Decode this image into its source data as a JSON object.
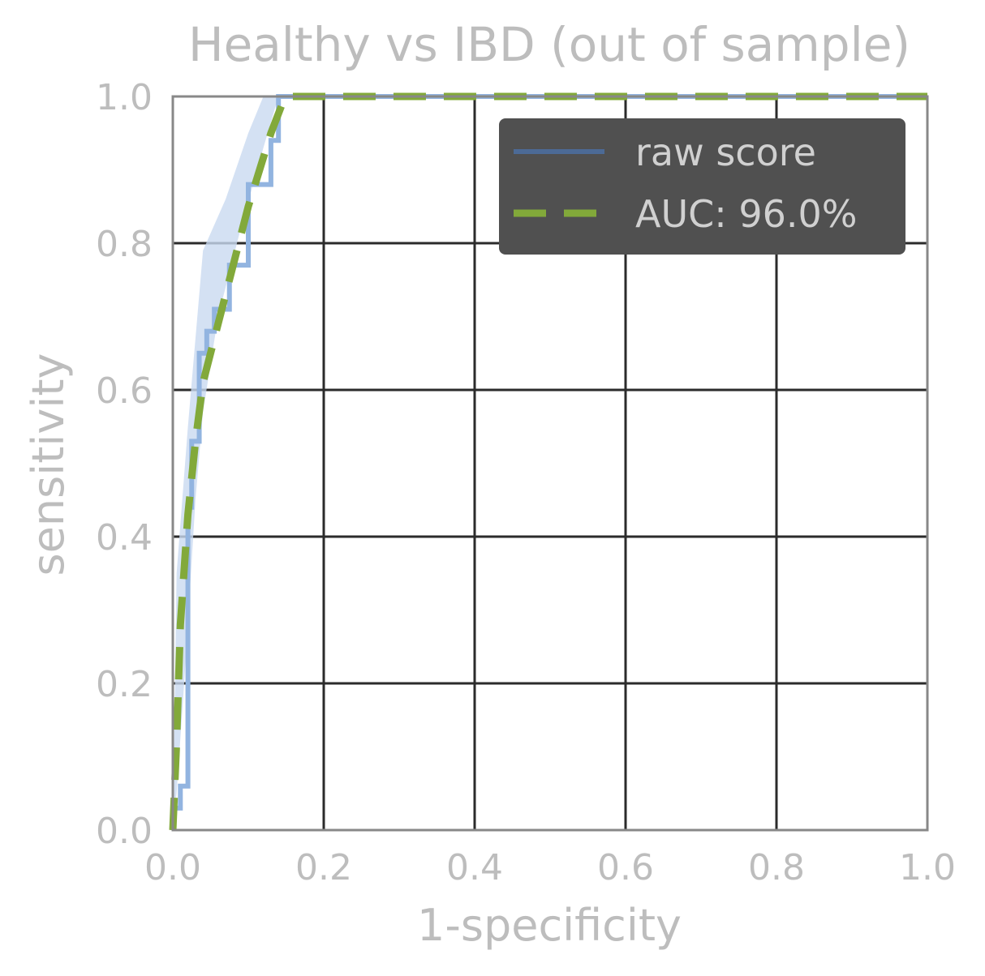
{
  "chart_data": {
    "type": "line",
    "title": "Healthy vs IBD (out of sample)",
    "xlabel": "1-specificity",
    "ylabel": "sensitivity",
    "xlim": [
      0,
      1
    ],
    "ylim": [
      0,
      1
    ],
    "x_ticks": [
      "0.0",
      "0.2",
      "0.4",
      "0.6",
      "0.8",
      "1.0"
    ],
    "y_ticks": [
      "0.0",
      "0.2",
      "0.4",
      "0.6",
      "0.8",
      "1.0"
    ],
    "grid": true,
    "legend_position": "top-right",
    "series": [
      {
        "name": "raw score",
        "style": "solid",
        "color": "#92b4e0",
        "legend_color": "#4c6a96",
        "x": [
          0,
          0,
          0.01,
          0.01,
          0.02,
          0.02,
          0.025,
          0.025,
          0.035,
          0.035,
          0.045,
          0.045,
          0.055,
          0.055,
          0.075,
          0.075,
          0.1,
          0.1,
          0.13,
          0.13,
          0.14,
          0.14,
          1.0
        ],
        "y": [
          0,
          0.03,
          0.03,
          0.06,
          0.06,
          0.44,
          0.44,
          0.53,
          0.53,
          0.65,
          0.65,
          0.68,
          0.68,
          0.71,
          0.71,
          0.77,
          0.77,
          0.88,
          0.88,
          0.94,
          0.94,
          1.0,
          1.0
        ],
        "band_upper": {
          "x": [
            0,
            0.005,
            0.02,
            0.04,
            0.07,
            0.1,
            0.12,
            0.14
          ],
          "y": [
            0,
            0.35,
            0.55,
            0.79,
            0.86,
            0.95,
            1.0,
            1.0
          ]
        },
        "band_lower": {
          "x": [
            0.14,
            0.12,
            0.09,
            0.06,
            0.04,
            0.03,
            0.015,
            0.005,
            0
          ],
          "y": [
            1.0,
            0.93,
            0.82,
            0.7,
            0.57,
            0.45,
            0.2,
            0.05,
            0
          ]
        },
        "band_color": "#c9d9f0"
      },
      {
        "name": "AUC: 96.0%",
        "style": "dashed",
        "color": "#82a93a",
        "x": [
          0,
          0.005,
          0.01,
          0.02,
          0.03,
          0.04,
          0.055,
          0.07,
          0.085,
          0.1,
          0.115,
          0.13,
          0.145,
          0.15,
          1.0
        ],
        "y": [
          0,
          0.12,
          0.28,
          0.43,
          0.53,
          0.61,
          0.67,
          0.73,
          0.79,
          0.85,
          0.9,
          0.95,
          0.99,
          1.0,
          1.0
        ]
      }
    ],
    "colors": {
      "grid": "#2b2b2b",
      "frame": "#888888",
      "legend_bg": "#505050"
    }
  }
}
